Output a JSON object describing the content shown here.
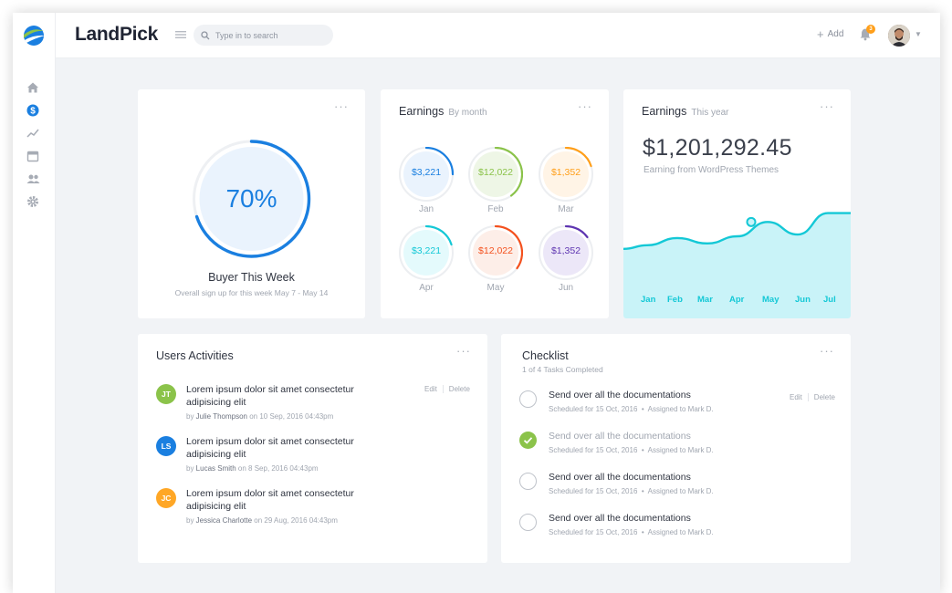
{
  "app": {
    "brand": "LandPick"
  },
  "search": {
    "placeholder": "Type in to search"
  },
  "header": {
    "add_label": "Add",
    "notification_count": "3"
  },
  "colors": {
    "primary": "#1a7fe0",
    "teal": "#14c8d6",
    "green": "#8bc34a",
    "orange": "#ff9f1a",
    "purple": "#7e57c2"
  },
  "sidebar": {
    "icons": [
      "home-icon",
      "dollar-icon",
      "trend-icon",
      "calendar-icon",
      "users-icon",
      "gear-icon"
    ]
  },
  "buyer": {
    "percent": "70%",
    "progress": 0.7,
    "title": "Buyer This Week",
    "subtitle": "Overall sign up for this week May 7 - May 14"
  },
  "earnings_month": {
    "title": "Earnings",
    "subtitle": "By month",
    "items": [
      {
        "amount": "$3,221",
        "month": "Jan",
        "color": "#1a7fe0",
        "fill": "#eaf3fd",
        "progress": 0.25
      },
      {
        "amount": "$12,022",
        "month": "Feb",
        "color": "#8bc34a",
        "fill": "#eef6e6",
        "progress": 0.4
      },
      {
        "amount": "$1,352",
        "month": "Mar",
        "color": "#ff9f1a",
        "fill": "#fff4e6",
        "progress": 0.2
      },
      {
        "amount": "$3,221",
        "month": "Apr",
        "color": "#14c8d6",
        "fill": "#e4fafc",
        "progress": 0.2
      },
      {
        "amount": "$12,022",
        "month": "May",
        "color": "#f4511e",
        "fill": "#fdeee8",
        "progress": 0.35
      },
      {
        "amount": "$1,352",
        "month": "Jun",
        "color": "#5e35b1",
        "fill": "#ece7f8",
        "progress": 0.15
      }
    ]
  },
  "earnings_year": {
    "title": "Earnings",
    "subtitle": "This year",
    "amount": "$1,201,292.45",
    "caption": "Earning from WordPress Themes"
  },
  "chart_data": {
    "type": "area",
    "categories": [
      "Jan",
      "Feb",
      "Mar",
      "Apr",
      "May",
      "Jun",
      "Jul"
    ],
    "values": [
      40,
      48,
      42,
      50,
      66,
      52,
      76
    ],
    "ylim": [
      0,
      100
    ],
    "highlight_index": 4,
    "title": "Earnings This year"
  },
  "activities": {
    "title": "Users Activities",
    "edit_label": "Edit",
    "delete_label": "Delete",
    "items": [
      {
        "initials": "JT",
        "color": "#8bc34a",
        "text": "Lorem ipsum dolor sit amet consectetur adipisicing elit",
        "by_prefix": "by",
        "user": "Julie Thompson",
        "date": "on 10 Sep, 2016 04:43pm"
      },
      {
        "initials": "LS",
        "color": "#1a7fe0",
        "text": "Lorem ipsum dolor sit amet consectetur adipisicing elit",
        "by_prefix": "by",
        "user": "Lucas Smith",
        "date": "on 8 Sep, 2016 04:43pm"
      },
      {
        "initials": "JC",
        "color": "#ffa726",
        "text": "Lorem ipsum dolor sit amet consectetur adipisicing elit",
        "by_prefix": "by",
        "user": "Jessica Charlotte",
        "date": "on 29 Aug, 2016 04:43pm"
      }
    ]
  },
  "checklist": {
    "title": "Checklist",
    "subtitle": "1 of 4 Tasks Completed",
    "edit_label": "Edit",
    "delete_label": "Delete",
    "tasks": [
      {
        "text": "Send over all the documentations",
        "scheduled": "Scheduled for 15 Oct, 2016",
        "assigned": "Assigned to Mark D.",
        "done": false
      },
      {
        "text": "Send over all the documentations",
        "scheduled": "Scheduled for 15 Oct, 2016",
        "assigned": "Assigned to Mark D.",
        "done": true
      },
      {
        "text": "Send over all the documentations",
        "scheduled": "Scheduled for 15 Oct, 2016",
        "assigned": "Assigned to Mark D.",
        "done": false
      },
      {
        "text": "Send over all the documentations",
        "scheduled": "Scheduled for 15 Oct, 2016",
        "assigned": "Assigned to Mark D.",
        "done": false
      }
    ]
  }
}
